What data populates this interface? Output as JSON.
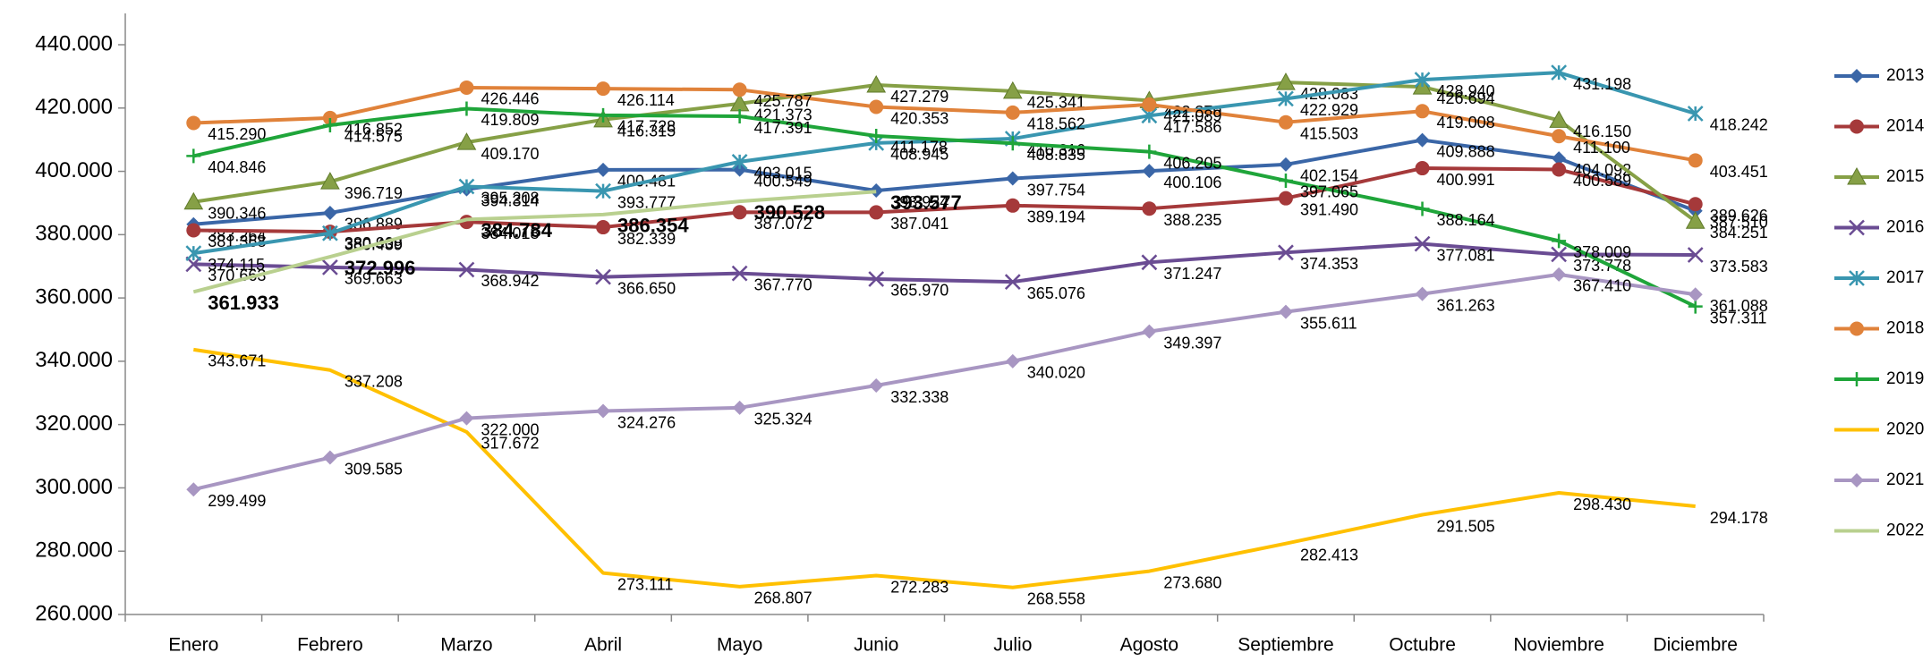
{
  "chart_data": {
    "type": "line",
    "categories": [
      "Enero",
      "Febrero",
      "Marzo",
      "Abril",
      "Mayo",
      "Junio",
      "Julio",
      "Agosto",
      "Septiembre",
      "Octubre",
      "Noviembre",
      "Diciembre"
    ],
    "ylim": [
      260000,
      440000
    ],
    "yticks": [
      {
        "value": 260000,
        "label": "260.000"
      },
      {
        "value": 280000,
        "label": "280.000"
      },
      {
        "value": 300000,
        "label": "300.000"
      },
      {
        "value": 320000,
        "label": "320.000"
      },
      {
        "value": 340000,
        "label": "340.000"
      },
      {
        "value": 360000,
        "label": "360.000"
      },
      {
        "value": 380000,
        "label": "380.000"
      },
      {
        "value": 400000,
        "label": "400.000"
      },
      {
        "value": 420000,
        "label": "420.000"
      },
      {
        "value": 440000,
        "label": "440.000"
      }
    ],
    "grid": false,
    "legend": "right",
    "series": [
      {
        "name": "2013",
        "color": "#3a66a7",
        "marker": "diamond",
        "values": [
          383264,
          386889,
          394314,
          400481,
          400549,
          393924,
          397754,
          400106,
          402154,
          409888,
          404092,
          387510
        ],
        "value_labels": [
          "383.264",
          "386.889",
          "394.314",
          "400.481",
          "400.549",
          "393.924",
          "397.754",
          "400.106",
          "402.154",
          "409.888",
          "404.092",
          "387.510"
        ]
      },
      {
        "name": "2014",
        "color": "#a5393a",
        "marker": "circle",
        "values": [
          381368,
          380908,
          384018,
          382339,
          387072,
          387041,
          389194,
          388235,
          391490,
          400991,
          400589,
          389626
        ],
        "value_labels": [
          "381.368",
          "380.908",
          "384.018",
          "382.339",
          "387.072",
          "387.041",
          "389.194",
          "388.235",
          "391.490",
          "400.991",
          "400.589",
          "389.626"
        ]
      },
      {
        "name": "2015",
        "color": "#86a046",
        "marker": "triangle",
        "values": [
          390346,
          396719,
          409170,
          416315,
          421373,
          427279,
          425341,
          422379,
          428083,
          426694,
          416150,
          384251
        ],
        "value_labels": [
          "390.346",
          "396.719",
          "409.170",
          "416.315",
          "421.373",
          "427.279",
          "425.341",
          "422.379",
          "428.083",
          "426.694",
          "416.150",
          "384.251"
        ]
      },
      {
        "name": "2016",
        "color": "#6a4c93",
        "marker": "x",
        "values": [
          370663,
          369663,
          368942,
          366650,
          367770,
          365970,
          365076,
          371247,
          374353,
          377081,
          373778,
          373583
        ],
        "value_labels": [
          "370.663",
          "369.663",
          "368.942",
          "366.650",
          "367.770",
          "365.970",
          "365.076",
          "371.247",
          "374.353",
          "377.081",
          "373.778",
          "373.583"
        ]
      },
      {
        "name": "2017",
        "color": "#3996b0",
        "marker": "asterisk",
        "values": [
          374115,
          380439,
          395208,
          393777,
          403015,
          408945,
          410316,
          417586,
          422929,
          428940,
          431198,
          418242
        ],
        "value_labels": [
          "374.115",
          "380.439",
          "395.208",
          "393.777",
          "403.015",
          "408.945",
          "410.316",
          "417.586",
          "422.929",
          "428.940",
          "431.198",
          "418.242"
        ]
      },
      {
        "name": "2018",
        "color": "#e0823a",
        "marker": "circle",
        "values": [
          415290,
          416852,
          426446,
          426114,
          425787,
          420353,
          418562,
          421089,
          415503,
          419008,
          411100,
          403451
        ],
        "value_labels": [
          "415.290",
          "416.852",
          "426.446",
          "426.114",
          "425.787",
          "420.353",
          "418.562",
          "421.089",
          "415.503",
          "419.008",
          "411.100",
          "403.451"
        ]
      },
      {
        "name": "2019",
        "color": "#1fa53a",
        "marker": "plus",
        "values": [
          404846,
          414575,
          419809,
          417728,
          417391,
          411178,
          408835,
          406205,
          397065,
          388164,
          378009,
          357311
        ],
        "value_labels": [
          "404.846",
          "414.575",
          "419.809",
          "417.728",
          "417.391",
          "411.178",
          "408.835",
          "406.205",
          "397.065",
          "388.164",
          "378.009",
          "357.311"
        ]
      },
      {
        "name": "2020",
        "color": "#ffc000",
        "marker": "none",
        "values": [
          343671,
          337208,
          317672,
          273111,
          268807,
          272283,
          268558,
          273680,
          282413,
          291505,
          298430,
          294178
        ],
        "value_labels": [
          "343.671",
          "337.208",
          "317.672",
          "273.111",
          "268.807",
          "272.283",
          "268.558",
          "273.680",
          "282.413",
          "291.505",
          "298.430",
          "294.178"
        ]
      },
      {
        "name": "2021",
        "color": "#a896c2",
        "marker": "diamond",
        "values": [
          299499,
          309585,
          322000,
          324276,
          325324,
          332338,
          340020,
          349397,
          355611,
          361263,
          367410,
          361088
        ],
        "value_labels": [
          "299.499",
          "309.585",
          "322.000",
          "324.276",
          "325.324",
          "332.338",
          "340.020",
          "349.397",
          "355.611",
          "361.263",
          "367.410",
          "361.088"
        ]
      },
      {
        "name": "2022",
        "color": "#b9d08f",
        "marker": "none",
        "bold_labels": true,
        "values": [
          361933,
          372996,
          384784,
          386354,
          390528,
          393577,
          null,
          null,
          null,
          null,
          null,
          null
        ],
        "value_labels": [
          "361.933",
          "372.996",
          "384.784",
          "386.354",
          "390.528",
          "393.577",
          null,
          null,
          null,
          null,
          null,
          null
        ]
      }
    ]
  }
}
